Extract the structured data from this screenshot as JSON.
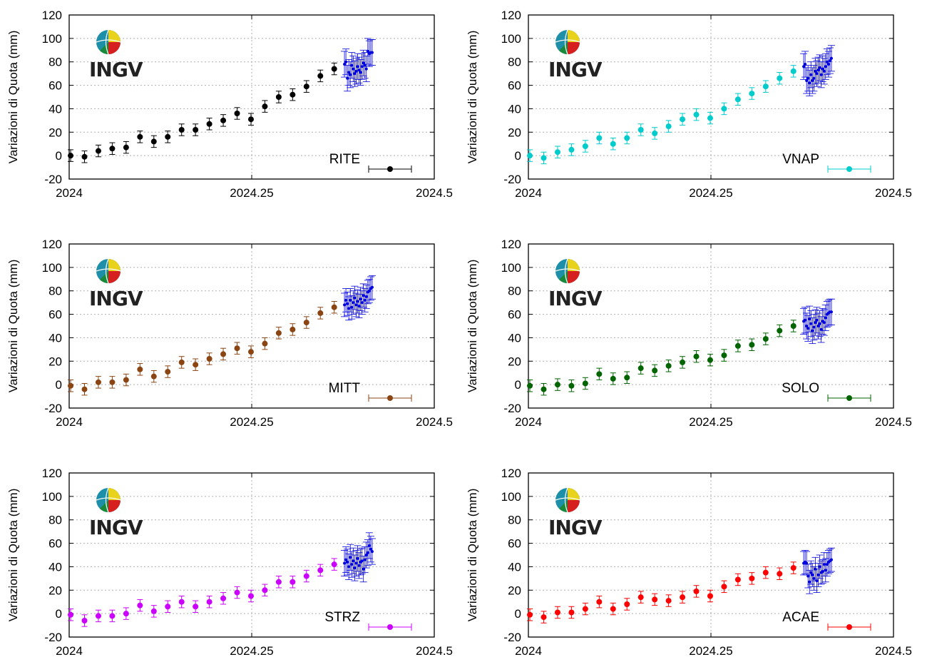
{
  "logo": {
    "text": "INGV",
    "icon": "globe-icon"
  },
  "colors": {
    "overlay": "#0000dd",
    "grid": "#b0b0b0"
  },
  "chart_data": [
    {
      "type": "scatter",
      "station": "RITE",
      "color": "#000000",
      "xlabel": "",
      "ylabel": "Variazioni di Quota (mm)",
      "xlim": [
        2024,
        2024.5
      ],
      "ylim": [
        -20,
        120
      ],
      "xticks": [
        "2024",
        "2024.25",
        "2024.5"
      ],
      "yticks": [
        "120",
        "100",
        "80",
        "60",
        "40",
        "20",
        "0",
        "-20"
      ],
      "grid": true,
      "legend": "bottom-right",
      "series": [
        {
          "x": [
            2024.002,
            2024.021,
            2024.04,
            2024.059,
            2024.078,
            2024.097,
            2024.116,
            2024.135,
            2024.154,
            2024.173,
            2024.192,
            2024.211,
            2024.23,
            2024.249,
            2024.268,
            2024.287,
            2024.306,
            2024.325,
            2024.344,
            2024.363
          ],
          "y": [
            0,
            -1,
            4,
            6,
            7,
            16,
            12,
            16,
            22,
            22,
            27,
            30,
            36,
            31,
            42,
            50,
            52,
            59,
            68,
            74
          ],
          "err": 5
        },
        {
          "x": [
            2024.377,
            2024.379,
            2024.381,
            2024.383,
            2024.385,
            2024.387,
            2024.389,
            2024.391,
            2024.393,
            2024.395,
            2024.397,
            2024.399,
            2024.401,
            2024.403,
            2024.405,
            2024.407,
            2024.409,
            2024.411,
            2024.413,
            2024.415
          ],
          "y": [
            78,
            80,
            66,
            71,
            69,
            77,
            74,
            70,
            72,
            76,
            73,
            71,
            76,
            79,
            77,
            74,
            89,
            87,
            88,
            88
          ],
          "err": 11
        }
      ]
    },
    {
      "type": "scatter",
      "station": "VNAP",
      "color": "#00cccc",
      "xlabel": "",
      "ylabel": "Variazioni di Quota (mm)",
      "xlim": [
        2024,
        2024.5
      ],
      "ylim": [
        -20,
        120
      ],
      "xticks": [
        "2024",
        "2024.25",
        "2024.5"
      ],
      "yticks": [
        "120",
        "100",
        "80",
        "60",
        "40",
        "20",
        "0",
        "-20"
      ],
      "grid": true,
      "legend": "bottom-right",
      "series": [
        {
          "x": [
            2024.002,
            2024.021,
            2024.04,
            2024.059,
            2024.078,
            2024.097,
            2024.116,
            2024.135,
            2024.154,
            2024.173,
            2024.192,
            2024.211,
            2024.23,
            2024.249,
            2024.268,
            2024.287,
            2024.306,
            2024.325,
            2024.344,
            2024.363
          ],
          "y": [
            0,
            -2,
            3,
            5,
            8,
            15,
            10,
            15,
            22,
            19,
            25,
            31,
            35,
            32,
            40,
            48,
            53,
            59,
            66,
            72
          ],
          "err": 5
        },
        {
          "x": [
            2024.377,
            2024.379,
            2024.381,
            2024.383,
            2024.385,
            2024.387,
            2024.389,
            2024.391,
            2024.393,
            2024.395,
            2024.397,
            2024.399,
            2024.401,
            2024.403,
            2024.405,
            2024.407,
            2024.409,
            2024.411,
            2024.413,
            2024.415
          ],
          "y": [
            76,
            78,
            64,
            66,
            62,
            69,
            64,
            66,
            72,
            70,
            73,
            75,
            69,
            74,
            72,
            76,
            80,
            78,
            81,
            83
          ],
          "err": 11
        }
      ]
    },
    {
      "type": "scatter",
      "station": "MITT",
      "color": "#8b4513",
      "xlabel": "",
      "ylabel": "Variazioni di Quota (mm)",
      "xlim": [
        2024,
        2024.5
      ],
      "ylim": [
        -20,
        120
      ],
      "xticks": [
        "2024",
        "2024.25",
        "2024.5"
      ],
      "yticks": [
        "120",
        "100",
        "80",
        "60",
        "40",
        "20",
        "0",
        "-20"
      ],
      "grid": true,
      "legend": "bottom-right",
      "series": [
        {
          "x": [
            2024.002,
            2024.021,
            2024.04,
            2024.059,
            2024.078,
            2024.097,
            2024.116,
            2024.135,
            2024.154,
            2024.173,
            2024.192,
            2024.211,
            2024.23,
            2024.249,
            2024.268,
            2024.287,
            2024.306,
            2024.325,
            2024.344,
            2024.363
          ],
          "y": [
            -1,
            -4,
            2,
            2,
            4,
            13,
            7,
            11,
            19,
            17,
            22,
            26,
            31,
            28,
            35,
            44,
            47,
            53,
            61,
            66
          ],
          "err": 5
        },
        {
          "x": [
            2024.377,
            2024.379,
            2024.381,
            2024.383,
            2024.385,
            2024.387,
            2024.389,
            2024.391,
            2024.393,
            2024.395,
            2024.397,
            2024.399,
            2024.401,
            2024.403,
            2024.405,
            2024.407,
            2024.409,
            2024.411,
            2024.413,
            2024.415
          ],
          "y": [
            68,
            72,
            69,
            65,
            72,
            66,
            70,
            74,
            68,
            71,
            67,
            73,
            70,
            76,
            72,
            75,
            79,
            80,
            82,
            83
          ],
          "err": 10
        }
      ]
    },
    {
      "type": "scatter",
      "station": "SOLO",
      "color": "#006400",
      "xlabel": "",
      "ylabel": "Variazioni di Quota (mm)",
      "xlim": [
        2024,
        2024.5
      ],
      "ylim": [
        -20,
        120
      ],
      "xticks": [
        "2024",
        "2024.25",
        "2024.5"
      ],
      "yticks": [
        "120",
        "100",
        "80",
        "60",
        "40",
        "20",
        "0",
        "-20"
      ],
      "grid": true,
      "legend": "bottom-right",
      "series": [
        {
          "x": [
            2024.002,
            2024.021,
            2024.04,
            2024.059,
            2024.078,
            2024.097,
            2024.116,
            2024.135,
            2024.154,
            2024.173,
            2024.192,
            2024.211,
            2024.23,
            2024.249,
            2024.268,
            2024.287,
            2024.306,
            2024.325,
            2024.344,
            2024.363
          ],
          "y": [
            -1,
            -4,
            0,
            -1,
            1,
            9,
            5,
            6,
            14,
            12,
            16,
            19,
            24,
            21,
            25,
            33,
            34,
            39,
            46,
            50
          ],
          "err": 5
        },
        {
          "x": [
            2024.377,
            2024.379,
            2024.381,
            2024.383,
            2024.385,
            2024.387,
            2024.389,
            2024.391,
            2024.393,
            2024.395,
            2024.397,
            2024.399,
            2024.401,
            2024.403,
            2024.405,
            2024.407,
            2024.409,
            2024.411,
            2024.413,
            2024.415
          ],
          "y": [
            54,
            55,
            50,
            48,
            56,
            52,
            46,
            49,
            53,
            55,
            50,
            52,
            47,
            54,
            53,
            57,
            60,
            61,
            62,
            62
          ],
          "err": 11
        }
      ]
    },
    {
      "type": "scatter",
      "station": "STRZ",
      "color": "#cc00ff",
      "xlabel": "",
      "ylabel": "Variazioni di Quota (mm)",
      "xlim": [
        2024,
        2024.5
      ],
      "ylim": [
        -20,
        120
      ],
      "xticks": [
        "2024",
        "2024.25",
        "2024.5"
      ],
      "yticks": [
        "120",
        "100",
        "80",
        "60",
        "40",
        "20",
        "0",
        "-20"
      ],
      "grid": true,
      "legend": "bottom-right",
      "series": [
        {
          "x": [
            2024.002,
            2024.021,
            2024.04,
            2024.059,
            2024.078,
            2024.097,
            2024.116,
            2024.135,
            2024.154,
            2024.173,
            2024.192,
            2024.211,
            2024.23,
            2024.249,
            2024.268,
            2024.287,
            2024.306,
            2024.325,
            2024.344,
            2024.363
          ],
          "y": [
            -1,
            -6,
            -2,
            -2,
            0,
            7,
            2,
            6,
            10,
            6,
            10,
            13,
            18,
            15,
            20,
            27,
            27,
            32,
            37,
            42
          ],
          "err": 5
        },
        {
          "x": [
            2024.377,
            2024.379,
            2024.381,
            2024.383,
            2024.385,
            2024.387,
            2024.389,
            2024.391,
            2024.393,
            2024.395,
            2024.397,
            2024.399,
            2024.401,
            2024.403,
            2024.405,
            2024.407,
            2024.409,
            2024.411,
            2024.413,
            2024.415
          ],
          "y": [
            43,
            46,
            44,
            40,
            48,
            42,
            45,
            39,
            43,
            47,
            41,
            44,
            45,
            38,
            46,
            50,
            52,
            58,
            55,
            53
          ],
          "err": 11
        }
      ]
    },
    {
      "type": "scatter",
      "station": "ACAE",
      "color": "#ff0000",
      "xlabel": "",
      "ylabel": "Variazioni di Quota (mm)",
      "xlim": [
        2024,
        2024.5
      ],
      "ylim": [
        -20,
        120
      ],
      "xticks": [
        "2024",
        "2024.25",
        "2024.5"
      ],
      "yticks": [
        "120",
        "100",
        "80",
        "60",
        "40",
        "20",
        "0",
        "-20"
      ],
      "grid": true,
      "legend": "bottom-right",
      "series": [
        {
          "x": [
            2024.002,
            2024.021,
            2024.04,
            2024.059,
            2024.078,
            2024.097,
            2024.116,
            2024.135,
            2024.154,
            2024.173,
            2024.192,
            2024.211,
            2024.23,
            2024.249,
            2024.268,
            2024.287,
            2024.306,
            2024.325,
            2024.344,
            2024.363
          ],
          "y": [
            -1,
            -3,
            1,
            1,
            4,
            10,
            4,
            8,
            14,
            12,
            11,
            14,
            19,
            15,
            23,
            29,
            30,
            35,
            34,
            39
          ],
          "err": 5
        },
        {
          "x": [
            2024.377,
            2024.379,
            2024.381,
            2024.383,
            2024.385,
            2024.387,
            2024.389,
            2024.391,
            2024.393,
            2024.395,
            2024.397,
            2024.399,
            2024.401,
            2024.403,
            2024.405,
            2024.407,
            2024.409,
            2024.411,
            2024.413,
            2024.415
          ],
          "y": [
            43,
            44,
            43,
            32,
            27,
            35,
            33,
            30,
            38,
            28,
            33,
            40,
            35,
            36,
            42,
            37,
            42,
            44,
            45,
            46
          ],
          "err": 10
        }
      ]
    }
  ]
}
